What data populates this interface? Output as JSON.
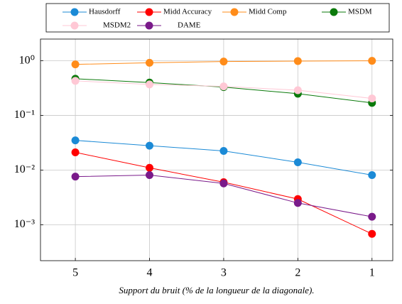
{
  "chart_data": {
    "type": "line",
    "xlabel": "Support du bruit (% de la longueur de la diagonale).",
    "x": [
      5,
      4,
      3,
      2,
      1
    ],
    "xlim": [
      5.47,
      0.72
    ],
    "xticks": [
      5,
      4,
      3,
      2,
      1
    ],
    "ylim": [
      0.00022,
      2.5
    ],
    "yscale": "log",
    "yticks": [
      {
        "value": 1,
        "label": "10⁰"
      },
      {
        "value": 0.1,
        "label": "10⁻¹"
      },
      {
        "value": 0.01,
        "label": "10⁻²"
      },
      {
        "value": 0.001,
        "label": "10⁻³"
      }
    ],
    "grid": true,
    "legend": "top",
    "series": [
      {
        "name": "Hausdorff",
        "color": "#1b8ad6",
        "values": [
          0.035,
          0.028,
          0.0224,
          0.0139,
          0.0081
        ]
      },
      {
        "name": "Midd Accuracy",
        "color": "#ff0000",
        "values": [
          0.0211,
          0.011,
          0.006,
          0.00295,
          0.00068
        ]
      },
      {
        "name": "Midd Comp",
        "color": "#ff8c1a",
        "values": [
          0.86,
          0.92,
          0.97,
          0.99,
          1.0
        ]
      },
      {
        "name": "MSDM",
        "color": "#0b7a0b",
        "values": [
          0.47,
          0.4,
          0.33,
          0.25,
          0.17
        ]
      },
      {
        "name": "MSDM2",
        "color": "#ffc8d5",
        "values": [
          0.43,
          0.37,
          0.34,
          0.29,
          0.205
        ]
      },
      {
        "name": "DAME",
        "color": "#7a1a8a",
        "values": [
          0.0076,
          0.0081,
          0.0057,
          0.0025,
          0.0014
        ]
      }
    ]
  }
}
